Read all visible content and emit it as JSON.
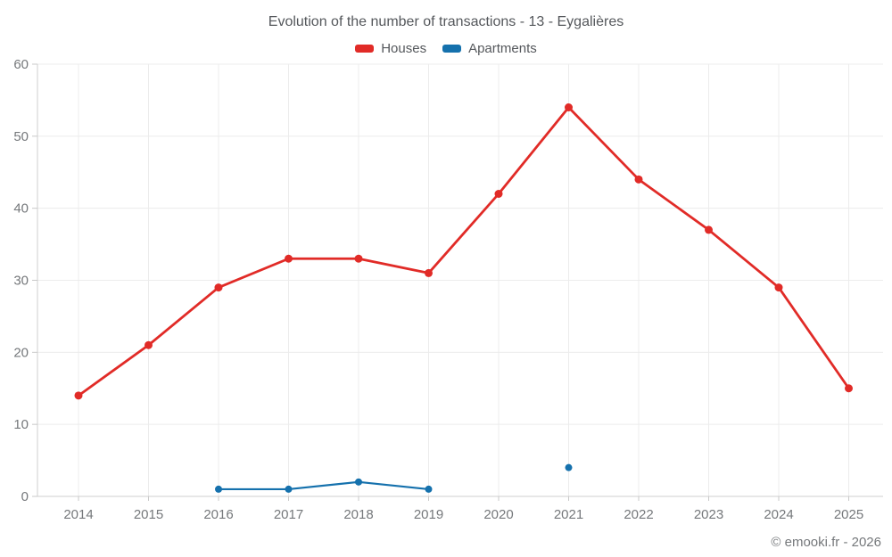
{
  "title": "Evolution of the number of transactions - 13 - Eygalières",
  "legend": [
    {
      "label": "Houses",
      "color": "#e12b27"
    },
    {
      "label": "Apartments",
      "color": "#1571ad"
    }
  ],
  "footer": {
    "copyright": "© emooki.fr - 2026"
  },
  "colors": {
    "grid": "#ececec",
    "axis": "#cfcfcf",
    "tick": "#c9c9c9",
    "tick_label": "#75787b",
    "title_text": "#55585c"
  },
  "chart_data": {
    "type": "line",
    "title": "Evolution of the number of transactions - 13 - Eygalières",
    "categories": [
      "2014",
      "2015",
      "2016",
      "2017",
      "2018",
      "2019",
      "2020",
      "2021",
      "2022",
      "2023",
      "2024",
      "2025"
    ],
    "series": [
      {
        "name": "Houses",
        "color": "#e12b27",
        "values": [
          14,
          21,
          29,
          33,
          33,
          31,
          42,
          54,
          44,
          37,
          29,
          15
        ]
      },
      {
        "name": "Apartments",
        "color": "#1571ad",
        "values": [
          null,
          null,
          1,
          1,
          2,
          1,
          null,
          4,
          null,
          null,
          null,
          null
        ]
      }
    ],
    "xlabel": "",
    "ylabel": "",
    "ylim": [
      0,
      60
    ],
    "yticks": [
      0,
      10,
      20,
      30,
      40,
      50,
      60
    ],
    "grid": true,
    "legend_position": "top"
  }
}
